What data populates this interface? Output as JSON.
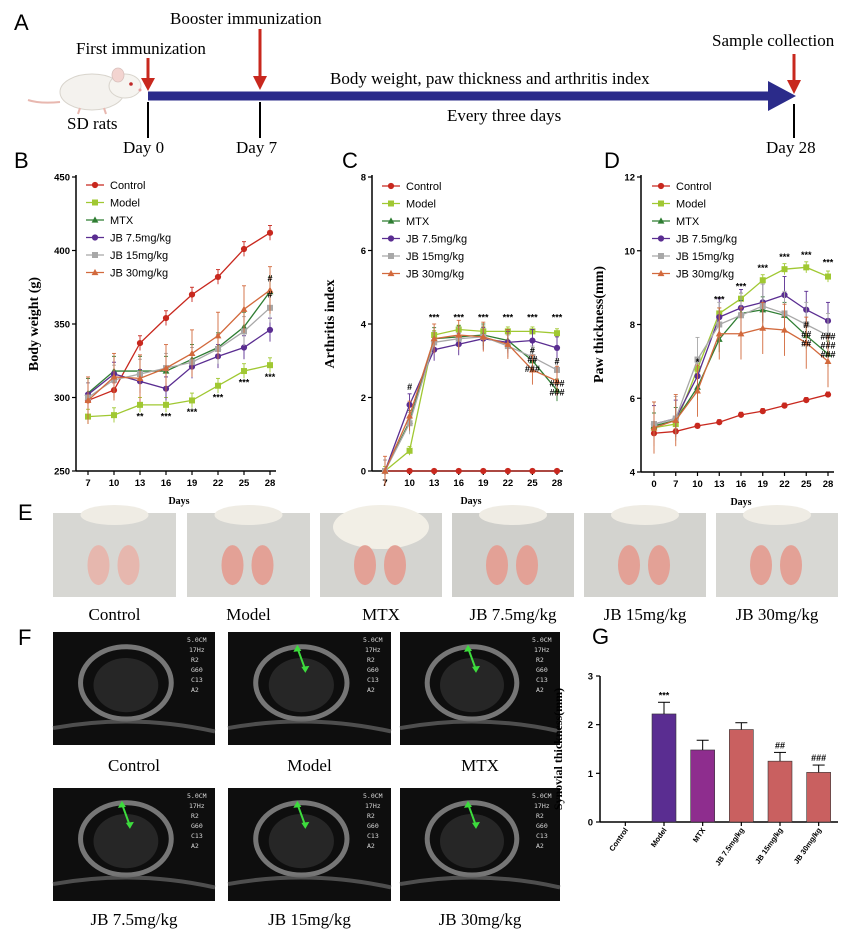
{
  "panel_labels": {
    "a": "A",
    "b": "B",
    "c": "C",
    "d": "D",
    "e": "E",
    "f": "F",
    "g": "G"
  },
  "timeline": {
    "subject": "SD rats",
    "first": "First immunization",
    "booster": "Booster immunization",
    "sample": "Sample collection",
    "measure": "Body weight, paw thickness and arthritis index",
    "frequency": "Every three days",
    "day0": "Day 0",
    "day7": "Day 7",
    "day28": "Day 28",
    "colors": {
      "arrow": "#2b2b8a",
      "marker": "#c8281e"
    }
  },
  "photo_labels": [
    "Control",
    "Model",
    "MTX",
    "JB 7.5mg/kg",
    "JB 15mg/kg",
    "JB 30mg/kg"
  ],
  "us_labels": [
    "Control",
    "Model",
    "MTX",
    "JB 7.5mg/kg",
    "JB 15mg/kg",
    "JB 30mg/kg"
  ],
  "groups": [
    {
      "name": "Control",
      "color": "#c8281e",
      "marker": "circle"
    },
    {
      "name": "Model",
      "color": "#a0c832",
      "marker": "square"
    },
    {
      "name": "MTX",
      "color": "#2e7d32",
      "marker": "triangle"
    },
    {
      "name": "JB 7.5mg/kg",
      "color": "#5a2d91",
      "marker": "circle"
    },
    {
      "name": "JB 15mg/kg",
      "color": "#a8a8a8",
      "marker": "square"
    },
    {
      "name": "JB 30mg/kg",
      "color": "#d2693c",
      "marker": "triangle"
    }
  ],
  "chart_data": [
    {
      "id": "B",
      "type": "line",
      "ylabel": "Body weight (g)",
      "xlabel": "Days",
      "x": [
        7,
        10,
        13,
        16,
        19,
        22,
        25,
        28
      ],
      "xticks": [
        "7",
        "10",
        "13",
        "16",
        "19",
        "22",
        "25",
        "28"
      ],
      "ylim": [
        250,
        450
      ],
      "yticks": [
        "250",
        "300",
        "350",
        "400",
        "450"
      ],
      "series": [
        {
          "name": "Control",
          "values": [
            298,
            305,
            337,
            354,
            370,
            382,
            401,
            412
          ],
          "err": 5
        },
        {
          "name": "Model",
          "values": [
            287,
            288,
            295,
            295,
            298,
            308,
            318,
            322
          ],
          "err": 5
        },
        {
          "name": "MTX",
          "values": [
            303,
            318,
            318,
            318,
            326,
            334,
            348,
            372
          ],
          "err": 10
        },
        {
          "name": "JB 7.5mg/kg",
          "values": [
            302,
            316,
            311,
            306,
            321,
            328,
            334,
            346
          ],
          "err": 8
        },
        {
          "name": "JB 15mg/kg",
          "values": [
            300,
            312,
            316,
            320,
            324,
            333,
            345,
            361
          ],
          "err": 10
        },
        {
          "name": "JB 30mg/kg",
          "values": [
            298,
            314,
            313,
            320,
            330,
            342,
            360,
            373
          ],
          "err": 16
        }
      ],
      "annotations": [
        {
          "text": "**",
          "x": 13,
          "y": 285
        },
        {
          "text": "***",
          "x": 16,
          "y": 285
        },
        {
          "text": "***",
          "x": 19,
          "y": 288
        },
        {
          "text": "***",
          "x": 22,
          "y": 298
        },
        {
          "text": "***",
          "x": 25,
          "y": 308
        },
        {
          "text": "***",
          "x": 28,
          "y": 312
        },
        {
          "text": "#",
          "x": 28,
          "y": 379
        },
        {
          "text": "#",
          "x": 28,
          "y": 368
        }
      ]
    },
    {
      "id": "C",
      "type": "line",
      "ylabel": "Arthritis index",
      "xlabel": "Days",
      "x": [
        7,
        10,
        13,
        16,
        19,
        22,
        25,
        28
      ],
      "xticks": [
        "7",
        "10",
        "13",
        "16",
        "19",
        "22",
        "25",
        "28"
      ],
      "ylim": [
        0,
        8
      ],
      "yticks": [
        "0",
        "2",
        "4",
        "6",
        "8"
      ],
      "series": [
        {
          "name": "Control",
          "values": [
            0,
            0,
            0,
            0,
            0,
            0,
            0,
            0
          ],
          "err": 0
        },
        {
          "name": "Model",
          "values": [
            0,
            0.55,
            3.7,
            3.85,
            3.8,
            3.8,
            3.8,
            3.75
          ],
          "err": 0.12
        },
        {
          "name": "MTX",
          "values": [
            0,
            1.35,
            3.6,
            3.65,
            3.7,
            3.55,
            3.0,
            2.2
          ],
          "err": 0.3
        },
        {
          "name": "JB 7.5mg/kg",
          "values": [
            0,
            1.8,
            3.3,
            3.45,
            3.6,
            3.5,
            3.55,
            3.35
          ],
          "err": 0.3
        },
        {
          "name": "JB 15mg/kg",
          "values": [
            0,
            1.3,
            3.5,
            3.6,
            3.65,
            3.4,
            3.1,
            2.75
          ],
          "err": 0.3
        },
        {
          "name": "JB 30mg/kg",
          "values": [
            0,
            1.5,
            3.6,
            3.7,
            3.65,
            3.45,
            2.75,
            2.45
          ],
          "err": 0.4
        }
      ],
      "annotations": [
        {
          "text": "***",
          "x": 13,
          "y": 4.1
        },
        {
          "text": "***",
          "x": 16,
          "y": 4.1
        },
        {
          "text": "***",
          "x": 19,
          "y": 4.1
        },
        {
          "text": "***",
          "x": 22,
          "y": 4.1
        },
        {
          "text": "***",
          "x": 25,
          "y": 4.1
        },
        {
          "text": "***",
          "x": 28,
          "y": 4.1
        },
        {
          "text": "#",
          "x": 10,
          "y": 2.2
        },
        {
          "text": "#",
          "x": 25,
          "y": 3.2
        },
        {
          "text": "##",
          "x": 25,
          "y": 2.95
        },
        {
          "text": "###",
          "x": 25,
          "y": 2.7
        },
        {
          "text": "#",
          "x": 28,
          "y": 2.9
        },
        {
          "text": "###",
          "x": 28,
          "y": 2.3
        },
        {
          "text": "###",
          "x": 28,
          "y": 2.05
        }
      ]
    },
    {
      "id": "D",
      "type": "line",
      "ylabel": "Paw thickness(mm)",
      "xlabel": "Days",
      "x": [
        0,
        7,
        10,
        13,
        16,
        19,
        22,
        25,
        28
      ],
      "xticks": [
        "0",
        "7",
        "10",
        "13",
        "16",
        "19",
        "22",
        "25",
        "28"
      ],
      "ylim": [
        4,
        12
      ],
      "yticks": [
        "4",
        "6",
        "8",
        "10",
        "12"
      ],
      "series": [
        {
          "name": "Control",
          "values": [
            5.05,
            5.1,
            5.25,
            5.35,
            5.55,
            5.65,
            5.8,
            5.95,
            6.1
          ],
          "err": 0.07
        },
        {
          "name": "Model",
          "values": [
            5.2,
            5.3,
            6.8,
            8.3,
            8.7,
            9.2,
            9.5,
            9.55,
            9.3
          ],
          "err": 0.15
        },
        {
          "name": "MTX",
          "values": [
            5.25,
            5.4,
            6.3,
            7.6,
            8.3,
            8.4,
            8.25,
            7.7,
            7.2
          ],
          "err": 0.35
        },
        {
          "name": "JB 7.5mg/kg",
          "values": [
            5.3,
            5.45,
            6.6,
            8.2,
            8.45,
            8.6,
            8.8,
            8.4,
            8.1
          ],
          "err": 0.5
        },
        {
          "name": "JB 15mg/kg",
          "values": [
            5.3,
            5.45,
            7.05,
            8.0,
            8.25,
            8.5,
            8.3,
            8.0,
            7.7
          ],
          "err": 0.6
        },
        {
          "name": "JB 30mg/kg",
          "values": [
            5.2,
            5.4,
            6.2,
            7.75,
            7.75,
            7.9,
            7.85,
            7.5,
            7.0
          ],
          "err": 0.7
        }
      ],
      "annotations": [
        {
          "text": "*",
          "x": 10,
          "y": 6.9
        },
        {
          "text": "***",
          "x": 13,
          "y": 8.6
        },
        {
          "text": "***",
          "x": 16,
          "y": 8.95
        },
        {
          "text": "***",
          "x": 19,
          "y": 9.45
        },
        {
          "text": "***",
          "x": 22,
          "y": 9.75
        },
        {
          "text": "***",
          "x": 25,
          "y": 9.8
        },
        {
          "text": "***",
          "x": 28,
          "y": 9.6
        },
        {
          "text": "#",
          "x": 25,
          "y": 7.9
        },
        {
          "text": "##",
          "x": 25,
          "y": 7.65
        },
        {
          "text": "##",
          "x": 25,
          "y": 7.4
        },
        {
          "text": "###",
          "x": 28,
          "y": 7.6
        },
        {
          "text": "###",
          "x": 28,
          "y": 7.35
        },
        {
          "text": "###",
          "x": 28,
          "y": 7.1
        }
      ]
    },
    {
      "id": "G",
      "type": "bar",
      "ylabel": "Synovial thickness(mm)",
      "categories": [
        "Control",
        "Model",
        "MTX",
        "JB 7.5mg/kg",
        "JB 15mg/kg",
        "JB 30mg/kg"
      ],
      "values": [
        0,
        2.22,
        1.48,
        1.9,
        1.25,
        1.02
      ],
      "err": [
        0,
        0.24,
        0.2,
        0.14,
        0.18,
        0.15
      ],
      "colors": [
        "#ffffff",
        "#5a2d91",
        "#8e2d8e",
        "#c96060",
        "#c96060",
        "#c96060"
      ],
      "ylim": [
        0,
        3
      ],
      "yticks": [
        "0",
        "1",
        "2",
        "3"
      ],
      "annotations": [
        {
          "text": "***",
          "bar": 1
        },
        {
          "text": "##",
          "bar": 4
        },
        {
          "text": "###",
          "bar": 5
        }
      ]
    }
  ]
}
